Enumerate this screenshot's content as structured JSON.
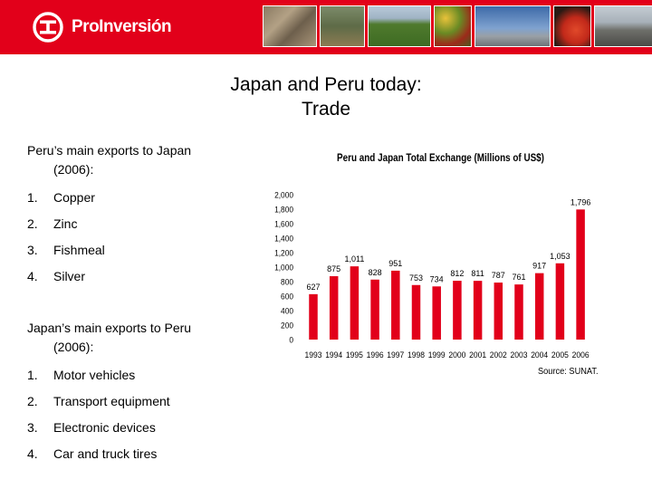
{
  "header": {
    "brand": "ProInversión",
    "brand_color": "#e2001a",
    "logo_icon": "proinversion-logo-icon",
    "photos": [
      "stone-wall-photo",
      "landscape-photo",
      "farmland-photo",
      "produce-photo",
      "airport-photo",
      "food-photo",
      "highway-photo"
    ]
  },
  "slide": {
    "title_line1": "Japan and Peru today:",
    "title_line2": "Trade"
  },
  "peru_exports": {
    "heading_line1": "Peru’s main exports to Japan",
    "heading_line2": "(2006):",
    "items": [
      {
        "num": "1.",
        "label": "Copper"
      },
      {
        "num": "2.",
        "label": "Zinc"
      },
      {
        "num": "3.",
        "label": "Fishmeal"
      },
      {
        "num": "4.",
        "label": "Silver"
      }
    ]
  },
  "japan_exports": {
    "heading_line1": "Japan’s main exports to Peru",
    "heading_line2": "(2006):",
    "items": [
      {
        "num": "1.",
        "label": "Motor vehicles"
      },
      {
        "num": "2.",
        "label": "Transport equipment"
      },
      {
        "num": "3.",
        "label": "Electronic devices"
      },
      {
        "num": "4.",
        "label": "Car and truck tires"
      }
    ]
  },
  "chart_data": {
    "type": "bar",
    "title": "Peru and Japan Total Exchange (Millions of US$)",
    "source": "Source: SUNAT.",
    "categories": [
      "1993",
      "1994",
      "1995",
      "1996",
      "1997",
      "1998",
      "1999",
      "2000",
      "2001",
      "2002",
      "2003",
      "2004",
      "2005",
      "2006"
    ],
    "values": [
      627,
      875,
      1011,
      828,
      951,
      753,
      734,
      812,
      811,
      787,
      761,
      917,
      1053,
      1796
    ],
    "value_labels": [
      "627",
      "875",
      "1,011",
      "828",
      "951",
      "753",
      "734",
      "812",
      "811",
      "787",
      "761",
      "917",
      "1,053",
      "1,796"
    ],
    "y_ticks": [
      "0",
      "200",
      "400",
      "600",
      "800",
      "1,000",
      "1,200",
      "1,400",
      "1,600",
      "1,800",
      "2,000"
    ],
    "ylim": [
      0,
      2000
    ],
    "bar_color": "#e2001a",
    "grid": false,
    "legend": "none"
  }
}
